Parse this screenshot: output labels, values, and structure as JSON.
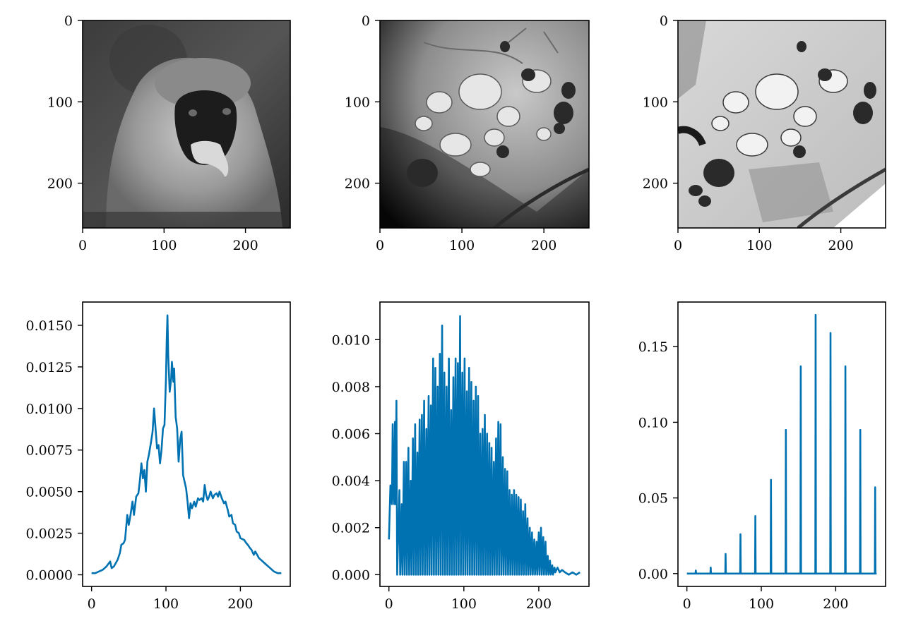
{
  "figure": {
    "layout": "2x3 grid"
  },
  "images": [
    {
      "id": "image-monkey",
      "subject": "grayscale portrait of a vervet monkey",
      "x_ticks": [
        "0",
        "100",
        "200"
      ],
      "y_ticks": [
        "0",
        "100",
        "200"
      ],
      "x_range": [
        0,
        255
      ],
      "y_range": [
        0,
        255
      ]
    },
    {
      "id": "image-cells-original",
      "subject": "electron micrograph of cells, low contrast with dark vignette",
      "x_ticks": [
        "0",
        "100",
        "200"
      ],
      "y_ticks": [
        "0",
        "100",
        "200"
      ],
      "x_range": [
        0,
        255
      ],
      "y_range": [
        0,
        255
      ]
    },
    {
      "id": "image-cells-equalized",
      "subject": "electron micrograph of cells, histogram-equalized",
      "x_ticks": [
        "0",
        "100",
        "200"
      ],
      "y_ticks": [
        "0",
        "100",
        "200"
      ],
      "x_range": [
        0,
        255
      ],
      "y_range": [
        0,
        255
      ]
    }
  ],
  "colors": {
    "series": "#0072b2",
    "frame": "#000000"
  },
  "chart_data": [
    {
      "type": "line",
      "grid": false,
      "xlim": [
        -12,
        267
      ],
      "ylim": [
        -0.0007,
        0.0164
      ],
      "x_ticks": [
        0,
        100,
        200
      ],
      "x_tick_labels": [
        "0",
        "100",
        "200"
      ],
      "y_ticks": [
        0.0,
        0.0025,
        0.005,
        0.0075,
        0.01,
        0.0125,
        0.015
      ],
      "y_tick_labels": [
        "0.0000",
        "0.0025",
        "0.0050",
        "0.0075",
        "0.0100",
        "0.0125",
        "0.0150"
      ],
      "points": [
        [
          0,
          0.0001
        ],
        [
          5,
          0.0001
        ],
        [
          10,
          0.0002
        ],
        [
          15,
          0.0003
        ],
        [
          20,
          0.0005
        ],
        [
          25,
          0.0008
        ],
        [
          27,
          0.0004
        ],
        [
          30,
          0.0005
        ],
        [
          35,
          0.0009
        ],
        [
          38,
          0.0013
        ],
        [
          40,
          0.0018
        ],
        [
          43,
          0.0019
        ],
        [
          45,
          0.0021
        ],
        [
          48,
          0.0036
        ],
        [
          50,
          0.003
        ],
        [
          52,
          0.0035
        ],
        [
          55,
          0.0044
        ],
        [
          57,
          0.0036
        ],
        [
          60,
          0.0047
        ],
        [
          63,
          0.0049
        ],
        [
          65,
          0.0057
        ],
        [
          67,
          0.0067
        ],
        [
          69,
          0.0058
        ],
        [
          71,
          0.0063
        ],
        [
          73,
          0.005
        ],
        [
          75,
          0.0068
        ],
        [
          77,
          0.0072
        ],
        [
          80,
          0.008
        ],
        [
          82,
          0.0086
        ],
        [
          84,
          0.01
        ],
        [
          86,
          0.0088
        ],
        [
          88,
          0.0076
        ],
        [
          90,
          0.0078
        ],
        [
          92,
          0.0067
        ],
        [
          94,
          0.0075
        ],
        [
          96,
          0.0088
        ],
        [
          98,
          0.009
        ],
        [
          100,
          0.0118
        ],
        [
          101,
          0.0141
        ],
        [
          102,
          0.0156
        ],
        [
          103,
          0.0132
        ],
        [
          105,
          0.011
        ],
        [
          107,
          0.0118
        ],
        [
          108,
          0.0128
        ],
        [
          110,
          0.0116
        ],
        [
          111,
          0.0124
        ],
        [
          113,
          0.0095
        ],
        [
          115,
          0.0088
        ],
        [
          117,
          0.0068
        ],
        [
          119,
          0.0081
        ],
        [
          121,
          0.0086
        ],
        [
          123,
          0.006
        ],
        [
          125,
          0.0056
        ],
        [
          127,
          0.0052
        ],
        [
          129,
          0.0044
        ],
        [
          131,
          0.0034
        ],
        [
          133,
          0.0043
        ],
        [
          135,
          0.004
        ],
        [
          138,
          0.0044
        ],
        [
          140,
          0.0041
        ],
        [
          143,
          0.0046
        ],
        [
          145,
          0.0045
        ],
        [
          148,
          0.0046
        ],
        [
          150,
          0.0044
        ],
        [
          152,
          0.0054
        ],
        [
          154,
          0.0048
        ],
        [
          156,
          0.0045
        ],
        [
          158,
          0.0047
        ],
        [
          160,
          0.005
        ],
        [
          163,
          0.0046
        ],
        [
          165,
          0.0048
        ],
        [
          168,
          0.0049
        ],
        [
          170,
          0.0047
        ],
        [
          172,
          0.005
        ],
        [
          175,
          0.0046
        ],
        [
          178,
          0.0043
        ],
        [
          180,
          0.0044
        ],
        [
          183,
          0.0039
        ],
        [
          185,
          0.0035
        ],
        [
          188,
          0.0036
        ],
        [
          190,
          0.0031
        ],
        [
          193,
          0.003
        ],
        [
          195,
          0.0026
        ],
        [
          198,
          0.0025
        ],
        [
          200,
          0.0022
        ],
        [
          205,
          0.0021
        ],
        [
          208,
          0.0019
        ],
        [
          210,
          0.0018
        ],
        [
          213,
          0.0016
        ],
        [
          215,
          0.0015
        ],
        [
          218,
          0.0012
        ],
        [
          220,
          0.0014
        ],
        [
          225,
          0.001
        ],
        [
          230,
          0.0008
        ],
        [
          235,
          0.0006
        ],
        [
          240,
          0.0004
        ],
        [
          245,
          0.0002
        ],
        [
          250,
          0.0001
        ],
        [
          255,
          0.0001
        ]
      ]
    },
    {
      "type": "line",
      "grid": false,
      "xlim": [
        -12,
        267
      ],
      "ylim": [
        -0.0005,
        0.0116
      ],
      "x_ticks": [
        0,
        100,
        200
      ],
      "x_tick_labels": [
        "0",
        "100",
        "200"
      ],
      "y_ticks": [
        0.0,
        0.002,
        0.004,
        0.006,
        0.008,
        0.01
      ],
      "y_tick_labels": [
        "0.000",
        "0.002",
        "0.004",
        "0.006",
        "0.008",
        "0.010"
      ],
      "points": [
        [
          0,
          0.0015
        ],
        [
          2,
          0.0038
        ],
        [
          4,
          0.003
        ],
        [
          5,
          0.0064
        ],
        [
          6,
          0.0035
        ],
        [
          7,
          0.003
        ],
        [
          8,
          0.0065
        ],
        [
          9,
          0.003
        ],
        [
          10,
          0.0074
        ],
        [
          11,
          0.0
        ],
        [
          14,
          0.0036
        ],
        [
          15,
          0.0
        ],
        [
          17,
          0.003
        ],
        [
          18,
          0.0
        ],
        [
          20,
          0.0048
        ],
        [
          21,
          0.0
        ],
        [
          23,
          0.0048
        ],
        [
          24,
          0.0
        ],
        [
          26,
          0.0054
        ],
        [
          27,
          0.0
        ],
        [
          29,
          0.004
        ],
        [
          30,
          0.0
        ],
        [
          32,
          0.0058
        ],
        [
          33,
          0.0
        ],
        [
          35,
          0.0064
        ],
        [
          36,
          0.0
        ],
        [
          38,
          0.0052
        ],
        [
          39,
          0.0
        ],
        [
          41,
          0.0066
        ],
        [
          42,
          0.0
        ],
        [
          44,
          0.0068
        ],
        [
          45,
          0.0
        ],
        [
          47,
          0.0074
        ],
        [
          48,
          0.0
        ],
        [
          50,
          0.0062
        ],
        [
          51,
          0.0
        ],
        [
          53,
          0.0076
        ],
        [
          54,
          0.0
        ],
        [
          56,
          0.0072
        ],
        [
          57,
          0.0
        ],
        [
          59,
          0.0092
        ],
        [
          60,
          0.0
        ],
        [
          62,
          0.0088
        ],
        [
          63,
          0.0
        ],
        [
          65,
          0.008
        ],
        [
          66,
          0.0
        ],
        [
          68,
          0.0094
        ],
        [
          69,
          0.0
        ],
        [
          71,
          0.0106
        ],
        [
          72,
          0.0
        ],
        [
          74,
          0.0086
        ],
        [
          75,
          0.0
        ],
        [
          77,
          0.008
        ],
        [
          78,
          0.0
        ],
        [
          80,
          0.0092
        ],
        [
          81,
          0.0
        ],
        [
          83,
          0.007
        ],
        [
          84,
          0.0
        ],
        [
          86,
          0.0084
        ],
        [
          87,
          0.0
        ],
        [
          89,
          0.0092
        ],
        [
          90,
          0.0
        ],
        [
          92,
          0.009
        ],
        [
          93,
          0.0
        ],
        [
          95,
          0.011
        ],
        [
          96,
          0.0
        ],
        [
          98,
          0.0086
        ],
        [
          99,
          0.0
        ],
        [
          101,
          0.0092
        ],
        [
          102,
          0.0
        ],
        [
          104,
          0.0078
        ],
        [
          105,
          0.0
        ],
        [
          107,
          0.0088
        ],
        [
          108,
          0.0
        ],
        [
          110,
          0.0082
        ],
        [
          111,
          0.0
        ],
        [
          113,
          0.0074
        ],
        [
          114,
          0.0
        ],
        [
          116,
          0.008
        ],
        [
          117,
          0.0
        ],
        [
          119,
          0.0076
        ],
        [
          120,
          0.0
        ],
        [
          122,
          0.006
        ],
        [
          123,
          0.0
        ],
        [
          125,
          0.0062
        ],
        [
          126,
          0.0
        ],
        [
          128,
          0.0068
        ],
        [
          129,
          0.0
        ],
        [
          131,
          0.006
        ],
        [
          132,
          0.0
        ],
        [
          134,
          0.0056
        ],
        [
          135,
          0.0
        ],
        [
          137,
          0.0054
        ],
        [
          138,
          0.0
        ],
        [
          140,
          0.0048
        ],
        [
          141,
          0.0
        ],
        [
          143,
          0.0058
        ],
        [
          144,
          0.0
        ],
        [
          146,
          0.0065
        ],
        [
          147,
          0.0
        ],
        [
          149,
          0.0064
        ],
        [
          150,
          0.0
        ],
        [
          152,
          0.005
        ],
        [
          153,
          0.0
        ],
        [
          155,
          0.0045
        ],
        [
          156,
          0.0
        ],
        [
          158,
          0.0044
        ],
        [
          159,
          0.0
        ],
        [
          161,
          0.0036
        ],
        [
          162,
          0.0
        ],
        [
          164,
          0.0034
        ],
        [
          165,
          0.0
        ],
        [
          167,
          0.0036
        ],
        [
          168,
          0.0
        ],
        [
          170,
          0.0034
        ],
        [
          171,
          0.0
        ],
        [
          173,
          0.0033
        ],
        [
          174,
          0.0
        ],
        [
          176,
          0.0032
        ],
        [
          177,
          0.0
        ],
        [
          179,
          0.0027
        ],
        [
          180,
          0.0
        ],
        [
          182,
          0.003
        ],
        [
          183,
          0.0
        ],
        [
          185,
          0.0024
        ],
        [
          186,
          0.0
        ],
        [
          188,
          0.002
        ],
        [
          189,
          0.0
        ],
        [
          191,
          0.0018
        ],
        [
          192,
          0.0
        ],
        [
          194,
          0.0015
        ],
        [
          195,
          0.0
        ],
        [
          197,
          0.0014
        ],
        [
          198,
          0.0
        ],
        [
          200,
          0.0018
        ],
        [
          201,
          0.0
        ],
        [
          203,
          0.002
        ],
        [
          204,
          0.0
        ],
        [
          206,
          0.0016
        ],
        [
          207,
          0.0
        ],
        [
          209,
          0.0014
        ],
        [
          210,
          0.0
        ],
        [
          212,
          0.0008
        ],
        [
          213,
          0.0
        ],
        [
          215,
          0.0006
        ],
        [
          216,
          0.0
        ],
        [
          218,
          0.0004
        ],
        [
          219,
          0.0
        ],
        [
          221,
          0.0003
        ],
        [
          222,
          0.0001
        ],
        [
          225,
          0.0003
        ],
        [
          228,
          0.0001
        ],
        [
          231,
          0.0002
        ],
        [
          235,
          0.0001
        ],
        [
          240,
          0.0
        ],
        [
          245,
          0.0001
        ],
        [
          250,
          0.0
        ],
        [
          255,
          0.0001
        ]
      ]
    },
    {
      "type": "line",
      "grid": false,
      "xlim": [
        -12,
        267
      ],
      "ylim": [
        -0.0085,
        0.1795
      ],
      "x_ticks": [
        0,
        100,
        200
      ],
      "x_tick_labels": [
        "0",
        "100",
        "200"
      ],
      "y_ticks": [
        0.0,
        0.05,
        0.1,
        0.15
      ],
      "y_tick_labels": [
        "0.00",
        "0.05",
        "0.10",
        "0.15"
      ],
      "spikes": [
        [
          12,
          0.002
        ],
        [
          32,
          0.004
        ],
        [
          52,
          0.013
        ],
        [
          72,
          0.026
        ],
        [
          92,
          0.038
        ],
        [
          113,
          0.062
        ],
        [
          133,
          0.095
        ],
        [
          153,
          0.137
        ],
        [
          173,
          0.171
        ],
        [
          193,
          0.159
        ],
        [
          213,
          0.137
        ],
        [
          233,
          0.095
        ],
        [
          253,
          0.057
        ]
      ],
      "x_end": 255
    }
  ]
}
